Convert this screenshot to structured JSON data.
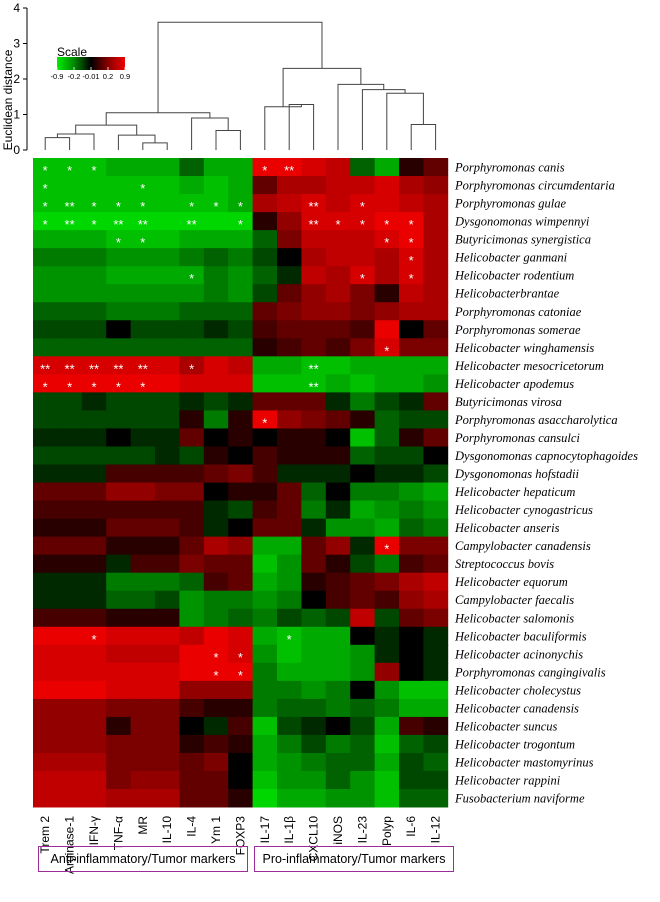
{
  "chart_data": {
    "type": "heatmap",
    "dendrogram_ylabel": "Euclidean distance",
    "dendrogram_yticks": [
      "0",
      "1",
      "2",
      "3",
      "4"
    ],
    "dendrogram_ylim": [
      0,
      4
    ],
    "scale": {
      "title": "Scale",
      "tick_labels": [
        "-0.9",
        "-0.2",
        "-0.01",
        "0.2",
        "0.9"
      ],
      "colors": [
        "#00ee00",
        "#008800",
        "#000000",
        "#880000",
        "#ee0000"
      ]
    },
    "columns": [
      "Trem 2",
      "Arginase-1",
      "IFN-γ",
      "TNF-α",
      "MR",
      "IL-10",
      "IL-4",
      "Ym 1",
      "FOXP3",
      "IL-17",
      "IL-1β",
      "CXCL10",
      "iNOS",
      "IL-23",
      "Polyp",
      "IL-6",
      "IL-12"
    ],
    "rows": [
      "Porphyromonas canis",
      "Porphyromonas circumdentaria",
      "Porphyromonas gulae",
      "Dysgonomonas wimpennyi",
      "Butyricimonas synergistica",
      "Helicobacter ganmani",
      "Helicobacter rodentium",
      "Helicobacterbrantae",
      "Porphyromonas catoniae",
      "Porphyromonas somerae",
      "Helicobacter winghamensis",
      "Helicobacter mesocricetorum",
      "Helicobacter apodemus",
      "Butyricimonas virosa",
      "Porphyromonas asaccharolytica",
      "Porphyromonas cansulci",
      "Dysgonomonas capnocytophagoides",
      "Dysgonomonas hofstadii",
      "Helicobacter hepaticum",
      "Helicobacter cynogastricus",
      "Helicobacter anseris",
      "Campylobacter canadensis",
      "Streptococcus bovis",
      "Helicobacter equorum",
      "Campylobacter faecalis",
      "Helicobacter salomonis",
      "Helicobacter baculiformis",
      "Helicobacter acinonychis",
      "Porphyromonas cangingivalis",
      "Helicobacter cholecystus",
      "Helicobacter canadensis",
      "Helicobacter suncus",
      "Helicobacter trogontum",
      "Helicobacter mastomyrinus",
      "Helicobacter rappini",
      "Fusobacterium naviforme"
    ],
    "values": [
      [
        -0.7,
        -0.7,
        -0.7,
        -0.6,
        -0.6,
        -0.6,
        -0.3,
        -0.6,
        -0.6,
        0.9,
        0.9,
        0.8,
        0.7,
        -0.3,
        -0.6,
        0.1,
        0.3
      ],
      [
        -0.7,
        -0.7,
        -0.7,
        -0.7,
        -0.7,
        -0.7,
        -0.6,
        -0.7,
        -0.6,
        0.3,
        0.6,
        0.6,
        0.7,
        0.7,
        0.8,
        0.6,
        0.5
      ],
      [
        -0.7,
        -0.7,
        -0.7,
        -0.7,
        -0.7,
        -0.7,
        -0.7,
        -0.7,
        -0.6,
        0.6,
        0.7,
        0.8,
        0.7,
        0.8,
        0.8,
        0.7,
        0.6
      ],
      [
        -0.8,
        -0.8,
        -0.8,
        -0.8,
        -0.8,
        -0.8,
        -0.8,
        -0.8,
        -0.8,
        0.1,
        0.5,
        0.8,
        0.8,
        0.8,
        0.9,
        0.9,
        0.6
      ],
      [
        -0.6,
        -0.6,
        -0.6,
        -0.7,
        -0.7,
        -0.7,
        -0.6,
        -0.6,
        -0.6,
        -0.3,
        0.4,
        0.7,
        0.7,
        0.7,
        0.8,
        0.9,
        0.6
      ],
      [
        -0.4,
        -0.4,
        -0.4,
        -0.5,
        -0.5,
        -0.5,
        -0.4,
        -0.3,
        -0.4,
        -0.2,
        0.0,
        0.6,
        0.7,
        0.7,
        0.6,
        0.8,
        0.6
      ],
      [
        -0.5,
        -0.5,
        -0.5,
        -0.6,
        -0.6,
        -0.6,
        -0.6,
        -0.4,
        -0.5,
        -0.3,
        -0.1,
        0.7,
        0.6,
        0.8,
        0.6,
        0.8,
        0.6
      ],
      [
        -0.5,
        -0.5,
        -0.5,
        -0.5,
        -0.5,
        -0.5,
        -0.5,
        -0.4,
        -0.5,
        -0.2,
        0.3,
        0.5,
        0.6,
        0.4,
        0.1,
        0.7,
        0.6
      ],
      [
        -0.3,
        -0.3,
        -0.3,
        -0.4,
        -0.4,
        -0.4,
        -0.3,
        -0.3,
        -0.3,
        0.3,
        0.4,
        0.5,
        0.5,
        0.4,
        0.5,
        0.6,
        0.6
      ],
      [
        -0.2,
        -0.2,
        -0.2,
        0.0,
        -0.2,
        -0.2,
        -0.2,
        -0.1,
        -0.2,
        0.2,
        0.3,
        0.3,
        0.3,
        0.2,
        0.9,
        0.0,
        0.3
      ],
      [
        -0.3,
        -0.3,
        -0.3,
        -0.3,
        -0.3,
        -0.3,
        -0.3,
        -0.3,
        -0.3,
        0.1,
        0.2,
        0.3,
        0.2,
        0.4,
        0.8,
        0.4,
        0.4
      ],
      [
        0.8,
        0.8,
        0.8,
        0.8,
        0.8,
        0.8,
        0.6,
        0.8,
        0.7,
        -0.6,
        -0.6,
        -0.7,
        -0.7,
        -0.6,
        -0.6,
        -0.6,
        -0.6
      ],
      [
        0.9,
        0.9,
        0.9,
        0.9,
        0.9,
        0.9,
        0.8,
        0.8,
        0.8,
        -0.7,
        -0.7,
        -0.7,
        -0.6,
        -0.7,
        -0.6,
        -0.6,
        -0.5
      ],
      [
        -0.2,
        -0.2,
        -0.1,
        -0.2,
        -0.2,
        -0.2,
        -0.1,
        -0.2,
        -0.1,
        0.3,
        0.3,
        0.3,
        -0.1,
        -0.4,
        -0.2,
        -0.1,
        0.3
      ],
      [
        -0.2,
        -0.2,
        -0.2,
        -0.2,
        -0.2,
        -0.2,
        0.1,
        -0.4,
        0.1,
        0.9,
        0.5,
        0.4,
        0.3,
        0.1,
        -0.3,
        -0.2,
        -0.2
      ],
      [
        -0.1,
        -0.1,
        -0.1,
        0.0,
        -0.1,
        -0.1,
        0.3,
        0.0,
        0.1,
        0.0,
        0.1,
        0.1,
        0.0,
        -0.7,
        -0.3,
        0.1,
        0.3
      ],
      [
        -0.2,
        -0.2,
        -0.2,
        -0.2,
        -0.2,
        -0.1,
        -0.2,
        0.1,
        0.0,
        0.2,
        0.1,
        0.1,
        0.1,
        -0.3,
        -0.2,
        -0.2,
        0.0
      ],
      [
        -0.1,
        -0.1,
        -0.1,
        0.2,
        0.2,
        0.2,
        0.2,
        0.3,
        0.4,
        0.2,
        -0.1,
        -0.1,
        -0.1,
        0.0,
        -0.1,
        -0.1,
        -0.2
      ],
      [
        0.3,
        0.3,
        0.3,
        0.5,
        0.5,
        0.4,
        0.4,
        0.0,
        0.1,
        0.1,
        0.3,
        -0.3,
        0.0,
        -0.4,
        -0.4,
        -0.5,
        -0.6
      ],
      [
        0.2,
        0.2,
        0.2,
        0.2,
        0.2,
        0.2,
        0.2,
        -0.1,
        -0.2,
        0.2,
        0.3,
        -0.4,
        -0.1,
        -0.6,
        -0.5,
        -0.4,
        -0.5
      ],
      [
        0.1,
        0.1,
        0.1,
        0.3,
        0.3,
        0.3,
        0.2,
        -0.1,
        0.0,
        0.3,
        0.3,
        -0.1,
        -0.5,
        -0.5,
        -0.6,
        -0.3,
        -0.4
      ],
      [
        0.3,
        0.3,
        0.3,
        0.1,
        0.1,
        0.1,
        0.3,
        0.6,
        0.5,
        -0.6,
        -0.6,
        0.3,
        0.5,
        -0.1,
        0.9,
        0.4,
        0.4
      ],
      [
        0.1,
        0.1,
        0.1,
        -0.1,
        0.2,
        0.2,
        0.4,
        0.3,
        0.3,
        -0.7,
        -0.5,
        0.3,
        0.1,
        -0.2,
        -0.4,
        0.2,
        0.3
      ],
      [
        -0.1,
        -0.1,
        -0.1,
        -0.4,
        -0.4,
        -0.4,
        -0.3,
        0.2,
        0.3,
        -0.6,
        -0.5,
        0.1,
        0.2,
        0.3,
        0.4,
        0.6,
        0.7
      ],
      [
        -0.1,
        -0.1,
        -0.1,
        -0.3,
        -0.3,
        -0.2,
        -0.5,
        -0.4,
        -0.4,
        -0.5,
        -0.4,
        0.0,
        0.2,
        0.3,
        0.2,
        0.5,
        0.6
      ],
      [
        0.2,
        0.2,
        0.2,
        0.1,
        0.1,
        0.1,
        -0.5,
        -0.4,
        -0.3,
        -0.4,
        -0.2,
        -0.3,
        -0.2,
        0.7,
        -0.2,
        0.3,
        0.4
      ],
      [
        0.9,
        0.9,
        0.9,
        0.8,
        0.8,
        0.8,
        0.7,
        0.9,
        0.8,
        -0.6,
        -0.7,
        -0.6,
        -0.6,
        0.0,
        -0.1,
        0.0,
        -0.1
      ],
      [
        0.8,
        0.8,
        0.8,
        0.7,
        0.7,
        0.7,
        0.9,
        0.9,
        0.8,
        -0.5,
        -0.7,
        -0.6,
        -0.6,
        -0.5,
        -0.1,
        0.0,
        -0.1
      ],
      [
        0.8,
        0.8,
        0.8,
        0.8,
        0.8,
        0.8,
        0.9,
        0.9,
        0.9,
        -0.4,
        -0.6,
        -0.6,
        -0.6,
        -0.5,
        0.5,
        0.0,
        -0.1
      ],
      [
        0.9,
        0.9,
        0.9,
        0.8,
        0.8,
        0.8,
        0.5,
        0.5,
        0.5,
        -0.4,
        -0.4,
        -0.5,
        -0.4,
        0.0,
        -0.5,
        -0.7,
        -0.7
      ],
      [
        0.5,
        0.5,
        0.5,
        0.4,
        0.4,
        0.4,
        0.2,
        0.1,
        0.1,
        -0.4,
        -0.3,
        -0.3,
        -0.4,
        -0.3,
        -0.4,
        -0.6,
        -0.6
      ],
      [
        0.5,
        0.5,
        0.5,
        0.1,
        0.4,
        0.4,
        0.0,
        -0.1,
        0.2,
        -0.7,
        -0.2,
        -0.1,
        0.0,
        -0.2,
        -0.6,
        0.2,
        0.1
      ],
      [
        0.5,
        0.5,
        0.5,
        0.4,
        0.4,
        0.4,
        0.1,
        0.2,
        0.1,
        -0.6,
        -0.4,
        -0.2,
        -0.4,
        -0.3,
        -0.7,
        -0.3,
        -0.2
      ],
      [
        0.6,
        0.6,
        0.6,
        0.4,
        0.4,
        0.4,
        0.3,
        0.4,
        0.0,
        -0.6,
        -0.5,
        -0.4,
        -0.3,
        -0.3,
        -0.6,
        -0.2,
        -0.3
      ],
      [
        0.7,
        0.7,
        0.7,
        0.4,
        0.5,
        0.5,
        0.3,
        0.3,
        0.0,
        -0.7,
        -0.5,
        -0.5,
        -0.3,
        -0.5,
        -0.7,
        -0.2,
        -0.2
      ],
      [
        0.7,
        0.7,
        0.7,
        0.6,
        0.6,
        0.6,
        0.3,
        0.3,
        0.1,
        -0.8,
        -0.6,
        -0.6,
        -0.5,
        -0.5,
        -0.7,
        -0.3,
        -0.3
      ]
    ],
    "significance": [
      {
        "row": 0,
        "col": 0,
        "mark": "*"
      },
      {
        "row": 0,
        "col": 1,
        "mark": "*"
      },
      {
        "row": 0,
        "col": 2,
        "mark": "*"
      },
      {
        "row": 0,
        "col": 9,
        "mark": "*"
      },
      {
        "row": 0,
        "col": 10,
        "mark": "**"
      },
      {
        "row": 1,
        "col": 0,
        "mark": "*"
      },
      {
        "row": 1,
        "col": 4,
        "mark": "*"
      },
      {
        "row": 2,
        "col": 0,
        "mark": "*"
      },
      {
        "row": 2,
        "col": 1,
        "mark": "**"
      },
      {
        "row": 2,
        "col": 2,
        "mark": "*"
      },
      {
        "row": 2,
        "col": 3,
        "mark": "*"
      },
      {
        "row": 2,
        "col": 4,
        "mark": "*"
      },
      {
        "row": 2,
        "col": 6,
        "mark": "*"
      },
      {
        "row": 2,
        "col": 7,
        "mark": "*"
      },
      {
        "row": 2,
        "col": 8,
        "mark": "*"
      },
      {
        "row": 2,
        "col": 11,
        "mark": "**"
      },
      {
        "row": 2,
        "col": 13,
        "mark": "*"
      },
      {
        "row": 3,
        "col": 0,
        "mark": "*"
      },
      {
        "row": 3,
        "col": 1,
        "mark": "**"
      },
      {
        "row": 3,
        "col": 2,
        "mark": "*"
      },
      {
        "row": 3,
        "col": 3,
        "mark": "**"
      },
      {
        "row": 3,
        "col": 4,
        "mark": "**"
      },
      {
        "row": 3,
        "col": 6,
        "mark": "**"
      },
      {
        "row": 3,
        "col": 8,
        "mark": "*"
      },
      {
        "row": 3,
        "col": 11,
        "mark": "**"
      },
      {
        "row": 3,
        "col": 12,
        "mark": "*"
      },
      {
        "row": 3,
        "col": 13,
        "mark": "*"
      },
      {
        "row": 3,
        "col": 14,
        "mark": "*"
      },
      {
        "row": 3,
        "col": 15,
        "mark": "*"
      },
      {
        "row": 4,
        "col": 3,
        "mark": "*"
      },
      {
        "row": 4,
        "col": 4,
        "mark": "*"
      },
      {
        "row": 4,
        "col": 14,
        "mark": "*"
      },
      {
        "row": 4,
        "col": 15,
        "mark": "*"
      },
      {
        "row": 5,
        "col": 15,
        "mark": "*"
      },
      {
        "row": 6,
        "col": 6,
        "mark": "*"
      },
      {
        "row": 6,
        "col": 13,
        "mark": "*"
      },
      {
        "row": 6,
        "col": 15,
        "mark": "*"
      },
      {
        "row": 10,
        "col": 14,
        "mark": "*"
      },
      {
        "row": 11,
        "col": 0,
        "mark": "**"
      },
      {
        "row": 11,
        "col": 1,
        "mark": "**"
      },
      {
        "row": 11,
        "col": 2,
        "mark": "**"
      },
      {
        "row": 11,
        "col": 3,
        "mark": "**"
      },
      {
        "row": 11,
        "col": 4,
        "mark": "**"
      },
      {
        "row": 11,
        "col": 6,
        "mark": "*"
      },
      {
        "row": 11,
        "col": 11,
        "mark": "**"
      },
      {
        "row": 12,
        "col": 0,
        "mark": "*"
      },
      {
        "row": 12,
        "col": 1,
        "mark": "*"
      },
      {
        "row": 12,
        "col": 2,
        "mark": "*"
      },
      {
        "row": 12,
        "col": 3,
        "mark": "*"
      },
      {
        "row": 12,
        "col": 4,
        "mark": "*"
      },
      {
        "row": 12,
        "col": 11,
        "mark": "**"
      },
      {
        "row": 14,
        "col": 9,
        "mark": "*"
      },
      {
        "row": 21,
        "col": 14,
        "mark": "*"
      },
      {
        "row": 26,
        "col": 2,
        "mark": "*"
      },
      {
        "row": 26,
        "col": 10,
        "mark": "*"
      },
      {
        "row": 27,
        "col": 7,
        "mark": "*"
      },
      {
        "row": 27,
        "col": 8,
        "mark": "*"
      },
      {
        "row": 28,
        "col": 7,
        "mark": "*"
      },
      {
        "row": 28,
        "col": 8,
        "mark": "*"
      }
    ],
    "column_dendrogram": [
      {
        "a": 0,
        "b": 1,
        "h": 0.35
      },
      {
        "a": 4,
        "b": 5,
        "h": 0.2
      },
      {
        "a": "m0",
        "b": 2,
        "h": 0.45
      },
      {
        "a": 3,
        "b": "m1",
        "h": 0.42
      },
      {
        "a": "m2",
        "b": "m3",
        "h": 0.7
      },
      {
        "a": 7,
        "b": 8,
        "h": 0.55
      },
      {
        "a": 6,
        "b": "m5",
        "h": 0.9
      },
      {
        "a": "m4",
        "b": "m6",
        "h": 1.05
      },
      {
        "a": 10,
        "b": 11,
        "h": 1.28
      },
      {
        "a": 9,
        "b": "m8",
        "h": 1.22
      },
      {
        "a": 15,
        "b": 16,
        "h": 0.72
      },
      {
        "a": 14,
        "b": "m10",
        "h": 1.6
      },
      {
        "a": 13,
        "b": "m11",
        "h": 1.7
      },
      {
        "a": 12,
        "b": "m12",
        "h": 1.85
      },
      {
        "a": "m9",
        "b": "m13",
        "h": 2.3
      },
      {
        "a": "m14",
        "b": "m7",
        "h": 3.6
      }
    ]
  },
  "groups": {
    "anti_label": "Anti-inflammatory/Tumor markers",
    "pro_label": "Pro-inflammatory/Tumor markers"
  }
}
